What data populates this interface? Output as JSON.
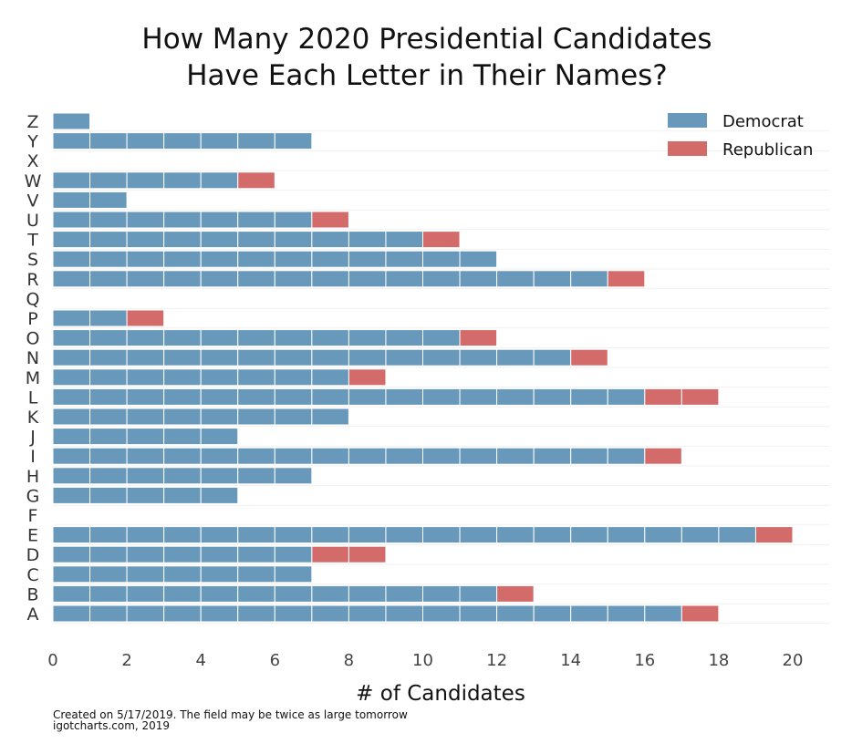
{
  "chart_data": {
    "type": "bar",
    "orientation": "horizontal",
    "stacked": true,
    "title": "How Many 2020 Presidential Candidates\nHave Each Letter in Their Names?",
    "xlabel": "# of Candidates",
    "ylabel": "",
    "xlim": [
      0,
      21
    ],
    "xticks": [
      0,
      2,
      4,
      6,
      8,
      10,
      12,
      14,
      16,
      18,
      20
    ],
    "grid": true,
    "legend_position": "top-right",
    "categories": [
      "A",
      "B",
      "C",
      "D",
      "E",
      "F",
      "G",
      "H",
      "I",
      "J",
      "K",
      "L",
      "M",
      "N",
      "O",
      "P",
      "Q",
      "R",
      "S",
      "T",
      "U",
      "V",
      "W",
      "X",
      "Y",
      "Z"
    ],
    "series": [
      {
        "name": "Democrat",
        "color": "#6899bb",
        "values": [
          17,
          12,
          7,
          7,
          19,
          0,
          5,
          7,
          16,
          5,
          8,
          16,
          8,
          14,
          11,
          2,
          0,
          15,
          12,
          10,
          7,
          2,
          5,
          0,
          7,
          1
        ]
      },
      {
        "name": "Republican",
        "color": "#d46b6b",
        "values": [
          1,
          1,
          0,
          2,
          1,
          0,
          0,
          0,
          1,
          0,
          0,
          2,
          1,
          1,
          1,
          1,
          0,
          1,
          0,
          1,
          1,
          0,
          1,
          0,
          0,
          0
        ]
      }
    ],
    "caption": [
      "Created on 5/17/2019. The field may be twice as large tomorrow",
      "igotcharts.com, 2019"
    ]
  }
}
